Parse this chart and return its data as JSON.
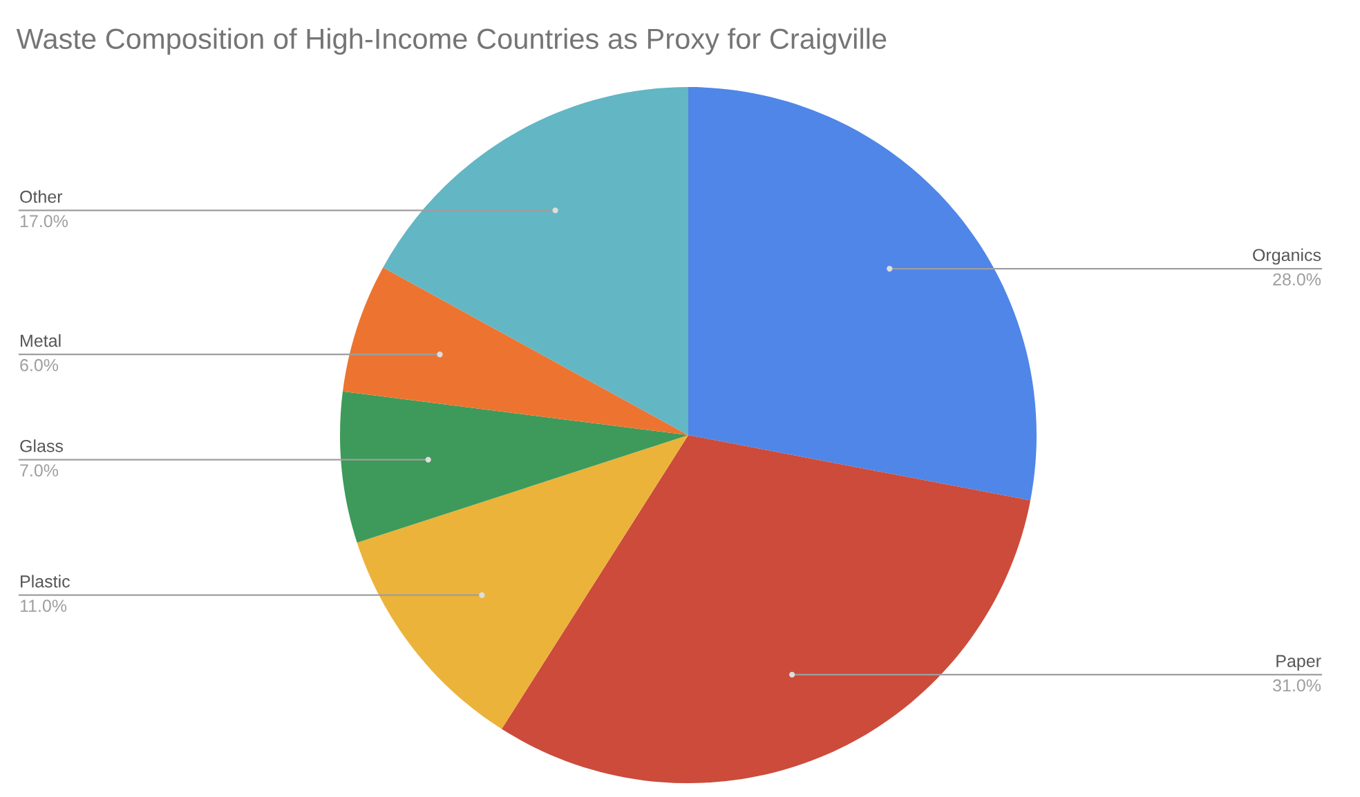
{
  "chart_data": {
    "type": "pie",
    "title": "Waste Composition of High-Income Countries as Proxy for Craigville",
    "categories": [
      "Organics",
      "Paper",
      "Plastic",
      "Glass",
      "Metal",
      "Other"
    ],
    "values": [
      28,
      31,
      11,
      7,
      6,
      17
    ],
    "value_labels": [
      "28.0%",
      "31.0%",
      "11.0%",
      "7.0%",
      "6.0%",
      "17.0%"
    ],
    "colors": [
      "#4f86e8",
      "#cc4b3b",
      "#ebb33a",
      "#3d9a5a",
      "#ec7430",
      "#63b6c3"
    ],
    "legend": false
  }
}
